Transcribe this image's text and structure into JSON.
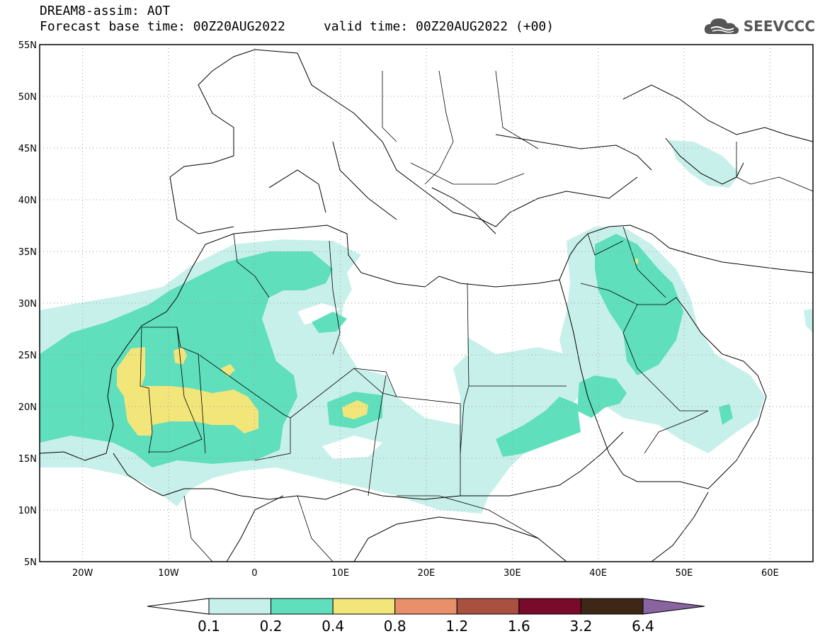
{
  "header": {
    "title_line1": "DREAM8-assim: AOT",
    "title_line2": "Forecast base time: 00Z20AUG2022     valid time: 00Z20AUG2022 (+00)"
  },
  "logo": {
    "text": "SEEVCCC",
    "icon": "cloud-logo-icon"
  },
  "map": {
    "parameter": "AOT",
    "lon_range": [
      -25,
      65
    ],
    "lat_range": [
      5,
      55
    ],
    "lat_labels": [
      "55N",
      "50N",
      "45N",
      "40N",
      "35N",
      "30N",
      "25N",
      "20N",
      "15N",
      "10N",
      "5N"
    ],
    "lon_labels": [
      "20W",
      "10W",
      "0",
      "10E",
      "20E",
      "30E",
      "40E",
      "50E",
      "60E"
    ]
  },
  "colorbar": {
    "levels": [
      "0.1",
      "0.2",
      "0.4",
      "0.8",
      "1.2",
      "1.6",
      "3.2",
      "6.4"
    ],
    "colors": [
      "#c8f0ea",
      "#5fdfbc",
      "#f2e57a",
      "#e8906a",
      "#aa5040",
      "#7a0a2a",
      "#3f2718",
      "#8a64a0"
    ]
  }
}
